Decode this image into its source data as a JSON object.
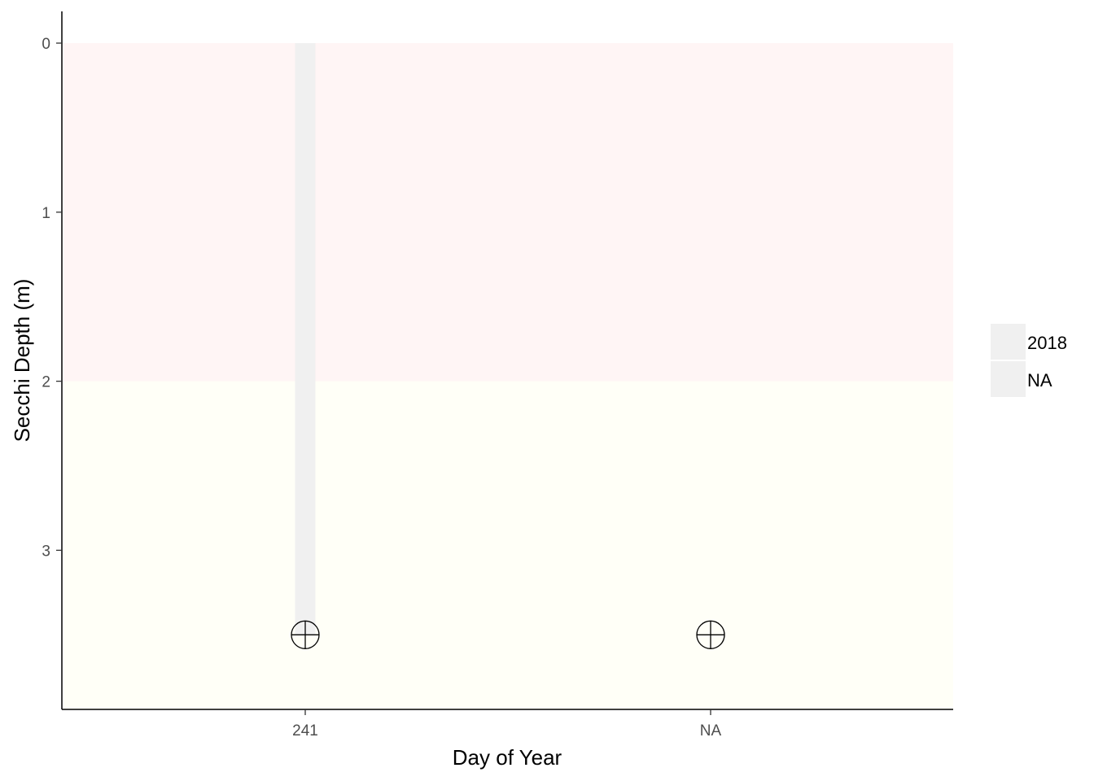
{
  "chart_data": {
    "type": "bar",
    "xlabel": "Day of Year",
    "ylabel": "Secchi Depth (m)",
    "categories": [
      "241",
      "NA"
    ],
    "y_reversed": true,
    "ylim": [
      0,
      3.94
    ],
    "yticks": [
      "0",
      "1",
      "2",
      "3"
    ],
    "bands": [
      {
        "from": 0,
        "to": 2,
        "color": "#fff5f5"
      },
      {
        "from": 2,
        "to": 3.94,
        "color": "#fffff7"
      }
    ],
    "series": [
      {
        "name": "2018",
        "color": "#f0f0f0",
        "values": [
          3.5,
          null
        ]
      }
    ],
    "points": [
      {
        "category": "241",
        "value": 3.5,
        "marker": "circle-plus"
      },
      {
        "category": "NA",
        "value": 3.5,
        "marker": "circle-plus"
      }
    ],
    "legend": {
      "position": "right",
      "entries": [
        {
          "label": "2018",
          "color": "#f0f0f0"
        },
        {
          "label": "NA",
          "color": "#f0f0f0"
        }
      ]
    },
    "grid": false
  }
}
